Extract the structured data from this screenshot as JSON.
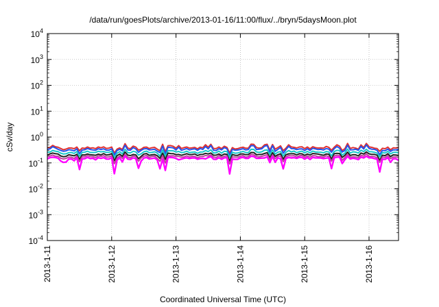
{
  "chart_data": {
    "type": "line",
    "title": "/data/run/goesPlots/archive/2013-01-16/11:00/flux/../bryn/5daysMoon.plot",
    "xlabel": "Coordinated Universal Time (UTC)",
    "ylabel": "cSv/day",
    "y_scale": "log",
    "ylim": [
      0.0001,
      10000
    ],
    "y_ticks": [
      {
        "value": 0.0001,
        "base": "10",
        "exp": "-4"
      },
      {
        "value": 0.001,
        "base": "10",
        "exp": "-3"
      },
      {
        "value": 0.01,
        "base": "10",
        "exp": "-2"
      },
      {
        "value": 0.1,
        "base": "10",
        "exp": "-1"
      },
      {
        "value": 1,
        "base": "10",
        "exp": "0"
      },
      {
        "value": 10,
        "base": "10",
        "exp": "1"
      },
      {
        "value": 100,
        "base": "10",
        "exp": "2"
      },
      {
        "value": 1000,
        "base": "10",
        "exp": "3"
      },
      {
        "value": 10000,
        "base": "10",
        "exp": "4"
      }
    ],
    "xlim": [
      "2013-01-11T00:00",
      "2013-01-16T11:00"
    ],
    "x_ticks": [
      {
        "value": "2013-01-11T00:00",
        "label": "2013-1-11"
      },
      {
        "value": "2013-01-12T00:00",
        "label": "2013-1-12"
      },
      {
        "value": "2013-01-13T00:00",
        "label": "2013-1-13"
      },
      {
        "value": "2013-01-14T00:00",
        "label": "2013-1-14"
      },
      {
        "value": "2013-01-15T00:00",
        "label": "2013-1-15"
      },
      {
        "value": "2013-01-16T00:00",
        "label": "2013-1-16"
      }
    ],
    "grid": true,
    "sample_interval_hours": 1,
    "series": [
      {
        "color": "#e03030",
        "level": 0.38,
        "spike": 0.14,
        "dip": 0.12
      },
      {
        "color": "#2255ee",
        "level": 0.33,
        "spike": 0.14,
        "dip": 0.14
      },
      {
        "color": "#18c8c8",
        "level": 0.26,
        "spike": 0.08,
        "dip": 0.14
      },
      {
        "color": "#202020",
        "level": 0.21,
        "spike": 0.06,
        "dip": 0.16
      },
      {
        "color": "#c040a0",
        "level": 0.175,
        "spike": 0.06,
        "dip": 0.18
      },
      {
        "color": "#ff00ff",
        "level": 0.15,
        "spike": 0.05,
        "dip": 0.3
      }
    ],
    "dip_events_hours": [
      12,
      25,
      34,
      42,
      44,
      68,
      88,
      106,
      124
    ]
  }
}
